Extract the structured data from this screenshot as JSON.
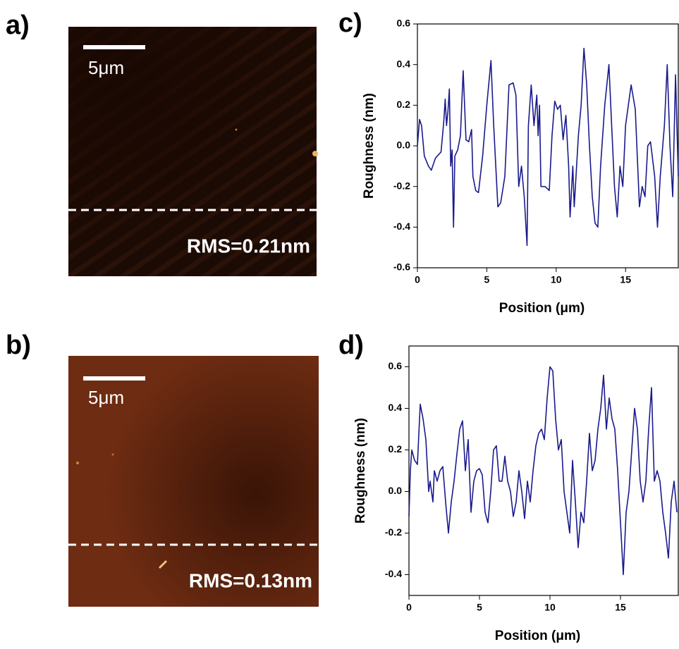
{
  "panels": [
    {
      "label": "a)",
      "scale_bar": "5μm",
      "rms": "RMS=0.21nm"
    },
    {
      "label": "b)",
      "scale_bar": "5μm",
      "rms": "RMS=0.13nm"
    }
  ],
  "chart_data": [
    {
      "type": "line",
      "panel_label": "c)",
      "x_label": "Position (μm)",
      "y_label": "Roughness (nm)",
      "color": "#1a1a8c",
      "xlim": [
        0,
        18.8
      ],
      "xticks": [
        0,
        5,
        10,
        15
      ],
      "ylim": [
        -0.6,
        0.6
      ],
      "yticks": [
        -0.6,
        -0.4,
        -0.2,
        {
          "value": 0,
          "label": "0.0"
        },
        0.2,
        0.4,
        0.6
      ],
      "x": [
        0,
        0.15,
        0.3,
        0.5,
        0.8,
        1.0,
        1.3,
        1.7,
        1.9,
        2.0,
        2.1,
        2.2,
        2.3,
        2.4,
        2.5,
        2.6,
        2.7,
        2.9,
        3.1,
        3.3,
        3.4,
        3.5,
        3.7,
        3.9,
        4.0,
        4.2,
        4.4,
        4.7,
        5.0,
        5.3,
        5.5,
        5.8,
        6.0,
        6.3,
        6.6,
        6.9,
        7.1,
        7.3,
        7.5,
        7.7,
        7.9,
        8.0,
        8.2,
        8.4,
        8.6,
        8.7,
        8.8,
        8.9,
        9.2,
        9.5,
        9.7,
        9.9,
        10.1,
        10.3,
        10.5,
        10.7,
        10.9,
        11.0,
        11.2,
        11.3,
        11.6,
        11.8,
        12.0,
        12.2,
        12.4,
        12.6,
        12.8,
        13.0,
        13.2,
        13.5,
        13.8,
        14.0,
        14.2,
        14.4,
        14.6,
        14.8,
        15.0,
        15.4,
        15.7,
        16.0,
        16.2,
        16.4,
        16.6,
        16.8,
        17.1,
        17.3,
        17.5,
        17.8,
        18.0,
        18.2,
        18.4,
        18.6,
        18.7,
        18.8
      ],
      "values": [
        0.0,
        0.13,
        0.1,
        -0.05,
        -0.1,
        -0.12,
        -0.06,
        -0.03,
        0.12,
        0.23,
        0.1,
        0.17,
        0.28,
        -0.1,
        -0.02,
        -0.4,
        -0.05,
        -0.02,
        0.05,
        0.37,
        0.2,
        0.03,
        0.02,
        0.08,
        -0.15,
        -0.22,
        -0.23,
        -0.05,
        0.2,
        0.42,
        0.1,
        -0.3,
        -0.28,
        -0.15,
        0.3,
        0.31,
        0.25,
        -0.2,
        -0.1,
        -0.25,
        -0.49,
        0.1,
        0.3,
        0.1,
        0.25,
        0.05,
        0.2,
        -0.2,
        -0.2,
        -0.22,
        0.05,
        0.22,
        0.18,
        0.2,
        0.03,
        0.15,
        -0.1,
        -0.35,
        -0.1,
        -0.3,
        0.05,
        0.2,
        0.48,
        0.3,
        0.0,
        -0.25,
        -0.38,
        -0.4,
        -0.1,
        0.2,
        0.4,
        0.1,
        -0.2,
        -0.35,
        -0.1,
        -0.2,
        0.1,
        0.3,
        0.18,
        -0.3,
        -0.2,
        -0.25,
        0.0,
        0.02,
        -0.15,
        -0.4,
        -0.15,
        0.1,
        0.4,
        0.0,
        -0.25,
        0.35,
        0.1,
        -0.15
      ]
    },
    {
      "type": "line",
      "panel_label": "d)",
      "x_label": "Position (μm)",
      "y_label": "Roughness (nm)",
      "color": "#1a1a8c",
      "xlim": [
        0,
        19.1
      ],
      "xticks": [
        0,
        5,
        10,
        15
      ],
      "ylim": [
        -0.5,
        0.7
      ],
      "yticks": [
        -0.4,
        -0.2,
        {
          "value": 0,
          "label": "0.0"
        },
        0.2,
        0.4,
        0.6
      ],
      "x": [
        0,
        0.1,
        0.2,
        0.4,
        0.6,
        0.8,
        1.0,
        1.2,
        1.4,
        1.5,
        1.7,
        1.8,
        2.0,
        2.2,
        2.4,
        2.6,
        2.8,
        3.0,
        3.2,
        3.4,
        3.6,
        3.8,
        4.0,
        4.2,
        4.4,
        4.6,
        4.8,
        5.0,
        5.2,
        5.4,
        5.6,
        5.8,
        6.0,
        6.2,
        6.4,
        6.6,
        6.8,
        7.0,
        7.2,
        7.4,
        7.6,
        7.8,
        8.0,
        8.2,
        8.4,
        8.6,
        8.8,
        9.0,
        9.2,
        9.4,
        9.6,
        9.8,
        10.0,
        10.2,
        10.4,
        10.6,
        10.8,
        11.0,
        11.2,
        11.4,
        11.6,
        11.8,
        12.0,
        12.2,
        12.4,
        12.6,
        12.8,
        13.0,
        13.2,
        13.4,
        13.6,
        13.8,
        14.0,
        14.2,
        14.4,
        14.6,
        14.8,
        15.0,
        15.2,
        15.4,
        15.6,
        15.8,
        16.0,
        16.2,
        16.4,
        16.6,
        16.8,
        17.0,
        17.2,
        17.4,
        17.6,
        17.8,
        18.0,
        18.2,
        18.4,
        18.6,
        18.8,
        19.0
      ],
      "values": [
        -0.12,
        0.1,
        0.2,
        0.15,
        0.13,
        0.42,
        0.35,
        0.25,
        0.0,
        0.05,
        -0.05,
        0.1,
        0.05,
        0.1,
        0.12,
        -0.05,
        -0.2,
        -0.05,
        0.05,
        0.18,
        0.3,
        0.34,
        0.1,
        0.25,
        -0.1,
        0.05,
        0.1,
        0.11,
        0.08,
        -0.1,
        -0.15,
        0.0,
        0.2,
        0.22,
        0.05,
        0.05,
        0.17,
        0.05,
        0.0,
        -0.12,
        -0.05,
        0.1,
        0.0,
        -0.13,
        0.05,
        -0.05,
        0.1,
        0.22,
        0.28,
        0.3,
        0.25,
        0.45,
        0.6,
        0.58,
        0.35,
        0.2,
        0.25,
        0.0,
        -0.1,
        -0.2,
        0.15,
        -0.05,
        -0.27,
        -0.1,
        -0.15,
        0.05,
        0.28,
        0.1,
        0.15,
        0.3,
        0.4,
        0.56,
        0.3,
        0.45,
        0.35,
        0.3,
        0.1,
        -0.15,
        -0.4,
        -0.1,
        0.0,
        0.2,
        0.4,
        0.3,
        0.05,
        -0.05,
        0.05,
        0.3,
        0.5,
        0.05,
        0.1,
        0.05,
        -0.1,
        -0.2,
        -0.32,
        -0.05,
        0.05,
        -0.1
      ]
    }
  ]
}
